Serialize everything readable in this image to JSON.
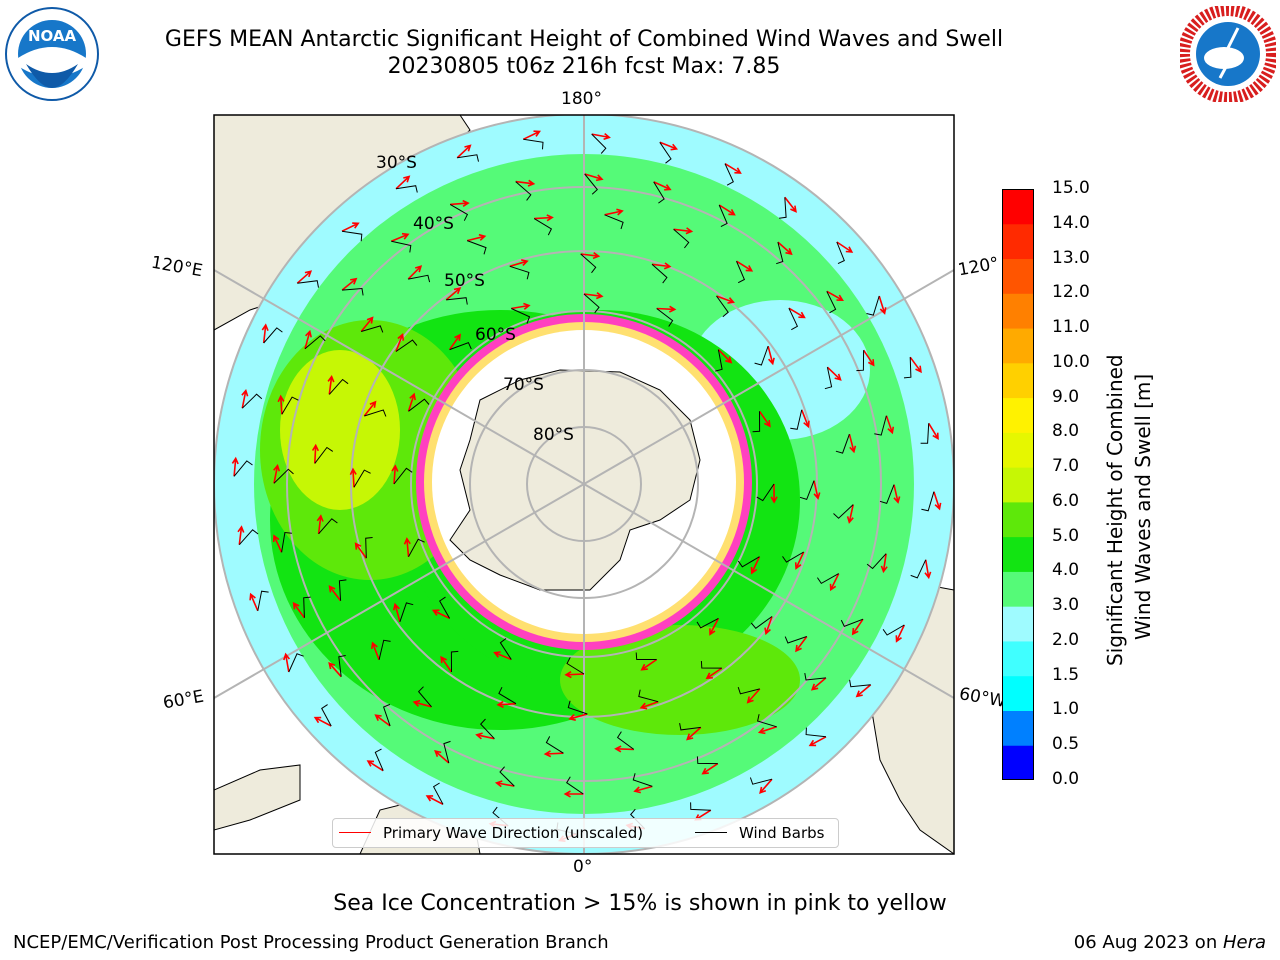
{
  "header": {
    "title_line1": "GEFS MEAN Antarctic Significant Height of Combined Wind Waves and Swell",
    "title_line2": "20230805 t06z 216h fcst   Max: 7.85"
  },
  "logos": {
    "left": {
      "icon": "noaa-logo-icon",
      "text": "NOAA",
      "color": "#0f5aa8"
    },
    "right": {
      "icon": "nws-logo-icon",
      "color": "#d81e1e"
    }
  },
  "map": {
    "projection": "south-polar-stereographic",
    "longitude_labels": {
      "top": "180°",
      "left": "120°E",
      "right": "120°",
      "lower_left": "60°E",
      "lower_right": "60°W",
      "bottom": "0°"
    },
    "latitude_labels": [
      "30°S",
      "40°S",
      "50°S",
      "60°S",
      "70°S",
      "80°S"
    ],
    "colors": {
      "land": "#eeebdc",
      "ocean_2_3": "#9ffbff",
      "ocean_3_4": "#55fa78",
      "ocean_4_5": "#12e412",
      "ocean_5_6": "#5ee80a",
      "ocean_6_7": "#c6f705",
      "ice_pink": "#ff40c0",
      "ice_yellow": "#ffe070",
      "wave_arrow": "#ff0000",
      "wind_barb": "#000000",
      "grid": "#b4b4b4"
    }
  },
  "legend": {
    "items": [
      {
        "label": "Primary Wave Direction (unscaled)",
        "color": "#ff0000"
      },
      {
        "label": "Wind Barbs",
        "color": "#000000"
      }
    ]
  },
  "colorbar": {
    "label_line1": "Significant Height of Combined",
    "label_line2": "Wind Waves and Swell [m]",
    "ticks": [
      "0.0",
      "0.5",
      "1.0",
      "1.5",
      "2.0",
      "3.0",
      "4.0",
      "5.0",
      "6.0",
      "7.0",
      "8.0",
      "9.0",
      "10.0",
      "11.0",
      "12.0",
      "13.0",
      "14.0",
      "15.0"
    ],
    "colors": [
      "#0000ff",
      "#0080ff",
      "#00ffff",
      "#40ffff",
      "#9ffbff",
      "#55fa78",
      "#12e412",
      "#5ee80a",
      "#c6f705",
      "#e6f700",
      "#fff200",
      "#ffd000",
      "#ffaa00",
      "#ff8000",
      "#ff5500",
      "#ff2a00",
      "#ff0000"
    ]
  },
  "caption": "Sea Ice Concentration > 15% is shown in pink to yellow",
  "footer": {
    "left": "NCEP/EMC/Verification Post Processing Product Generation Branch",
    "right_prefix": "06 Aug 2023 on ",
    "right_host": "Hera"
  }
}
